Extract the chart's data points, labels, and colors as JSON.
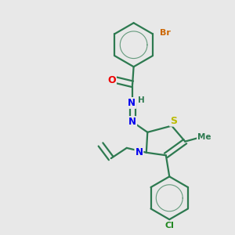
{
  "bg_color": "#e8e8e8",
  "bond_color": "#2d7a50",
  "bond_width": 1.6,
  "atom_colors": {
    "N": "#0000ee",
    "O": "#ee0000",
    "S": "#bbbb00",
    "Br": "#cc6600",
    "Cl": "#228822",
    "C": "#2d7a50",
    "H": "#2d7a50"
  },
  "figsize": [
    3.0,
    3.0
  ],
  "dpi": 100
}
